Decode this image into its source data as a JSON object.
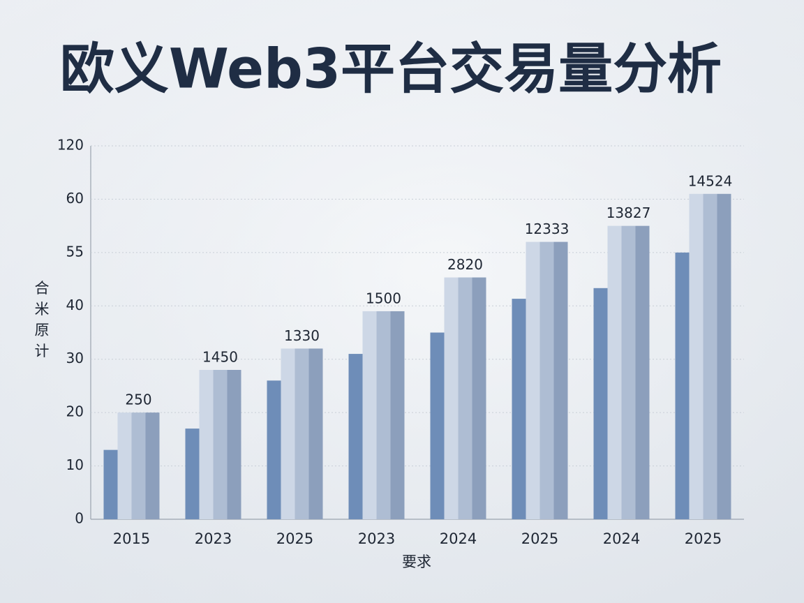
{
  "chart_data": {
    "type": "bar",
    "title": "欧义Web3平台交易量分析",
    "x_label": "要求",
    "y_label": "合米原计",
    "categories": [
      "2015",
      "2023",
      "2025",
      "2023",
      "2024",
      "2025",
      "2024",
      "2025"
    ],
    "series": [
      {
        "color": "#6e8db8",
        "values": [
          13,
          17,
          26,
          31,
          35,
          42,
          45,
          55
        ]
      },
      {
        "color": "#cdd7e6",
        "values": [
          20,
          28,
          32,
          39,
          48,
          56,
          57.5,
          66
        ]
      },
      {
        "color": "#aebdd3",
        "values": [
          20,
          28,
          32,
          39,
          48,
          56,
          57.5,
          66
        ]
      },
      {
        "color": "#8c9fbc",
        "values": [
          20,
          28,
          32,
          39,
          48,
          56,
          57.5,
          66
        ]
      }
    ],
    "bar_labels": [
      "250",
      "1450",
      "1330",
      "1500",
      "2820",
      "12333",
      "13827",
      "14524"
    ],
    "ylim": [
      0,
      120
    ],
    "yticks": [
      0,
      10,
      20,
      30,
      40,
      55,
      60,
      120
    ],
    "grid": true
  }
}
